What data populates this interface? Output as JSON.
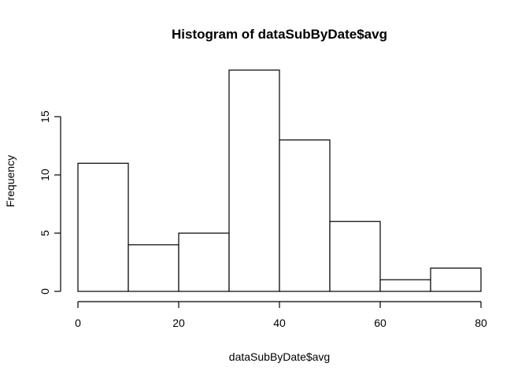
{
  "chart_data": {
    "type": "bar",
    "title": "Histogram of dataSubByDate$avg",
    "xlabel": "dataSubByDate$avg",
    "ylabel": "Frequency",
    "bins": [
      {
        "start": 0,
        "end": 10,
        "count": 11
      },
      {
        "start": 10,
        "end": 20,
        "count": 4
      },
      {
        "start": 20,
        "end": 30,
        "count": 5
      },
      {
        "start": 30,
        "end": 40,
        "count": 19
      },
      {
        "start": 40,
        "end": 50,
        "count": 13
      },
      {
        "start": 50,
        "end": 60,
        "count": 6
      },
      {
        "start": 60,
        "end": 70,
        "count": 1
      },
      {
        "start": 70,
        "end": 80,
        "count": 2
      }
    ],
    "xlim": [
      0,
      80
    ],
    "ylim": [
      0,
      19
    ],
    "x_ticks": [
      0,
      20,
      40,
      60,
      80
    ],
    "y_ticks": [
      0,
      5,
      10,
      15
    ],
    "grid": false,
    "bar_fill": "#ffffff",
    "bar_stroke": "#000000"
  }
}
